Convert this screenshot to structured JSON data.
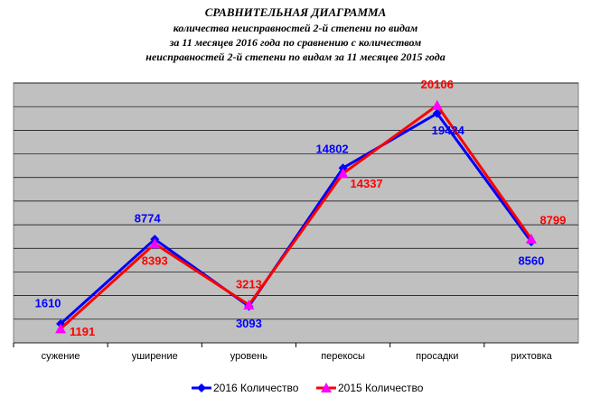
{
  "chart_data": {
    "type": "line",
    "title": "СРАВНИТЕЛЬНАЯ ДИАГРАММА",
    "subtitle": [
      "количества неисправностей 2-й степени по видам",
      "за 11 месяцев  2016 года по сравнению с количеством",
      "неисправностей 2-й степени по видам за 11 месяцев 2015 года"
    ],
    "categories": [
      "сужение",
      "уширение",
      "уровень",
      "перекосы",
      "просадки",
      "рихтовка"
    ],
    "series": [
      {
        "name": "2016 Количество",
        "color": "#0000ff",
        "values": [
          1610,
          8774,
          3093,
          14802,
          19424,
          8560
        ]
      },
      {
        "name": "2015 Количество",
        "color": "#ff0000",
        "values": [
          1191,
          8393,
          3213,
          14337,
          20106,
          8799
        ]
      }
    ],
    "ylim": [
      0,
      22000
    ],
    "yticks": [
      0,
      2000,
      4000,
      6000,
      8000,
      10000,
      12000,
      14000,
      16000,
      18000,
      20000,
      22000
    ],
    "grid": true,
    "legend": "bottom"
  }
}
